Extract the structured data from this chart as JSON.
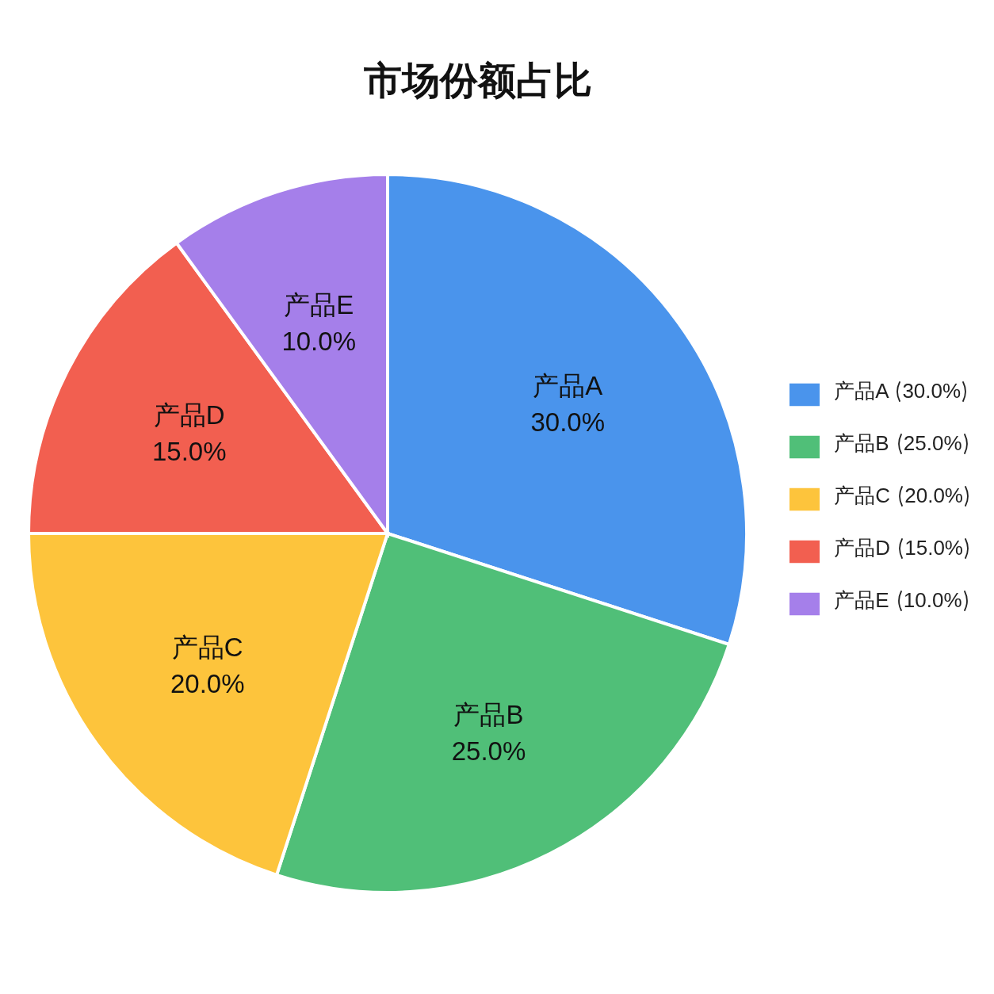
{
  "chart_data": {
    "type": "pie",
    "title": "市场份额占比",
    "categories": [
      "产品A",
      "产品B",
      "产品C",
      "产品D",
      "产品E"
    ],
    "values": [
      30,
      25,
      20,
      15,
      10
    ],
    "colors": [
      "#4a94ec",
      "#50bf78",
      "#fdc43c",
      "#f25f50",
      "#a57fea"
    ],
    "value_labels": [
      "30.0%",
      "25.0%",
      "20.0%",
      "15.0%",
      "10.0%"
    ],
    "legend": "right"
  }
}
